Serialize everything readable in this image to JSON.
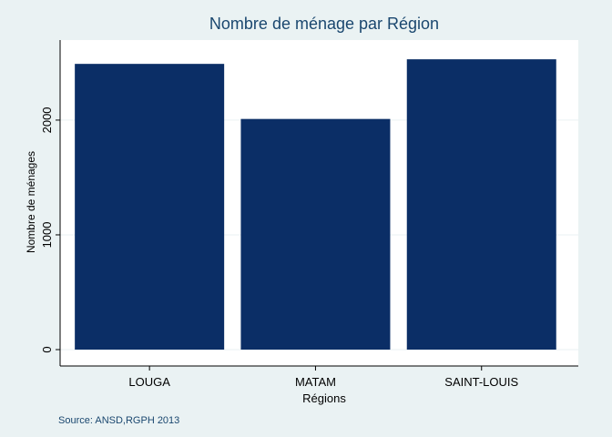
{
  "colors": {
    "background": "#eaf2f3",
    "plot_background": "#ffffff",
    "bar": "#0b2e66",
    "title": "#1a476f",
    "gridline": "#eaf2f3"
  },
  "chart_data": {
    "type": "bar",
    "title": "Nombre de ménage par Région",
    "xlabel": "Régions",
    "ylabel": "Nombre de ménages",
    "categories": [
      "LOUGA",
      "MATAM",
      "SAINT-LOUIS"
    ],
    "values": [
      2490,
      2010,
      2530
    ],
    "ylim": [
      0,
      2650
    ],
    "yticks": [
      0,
      1000,
      2000
    ],
    "ytick_labels": [
      "0",
      "1000",
      "2000"
    ],
    "grid": true,
    "note": "Source: ANSD,RGPH 2013"
  }
}
